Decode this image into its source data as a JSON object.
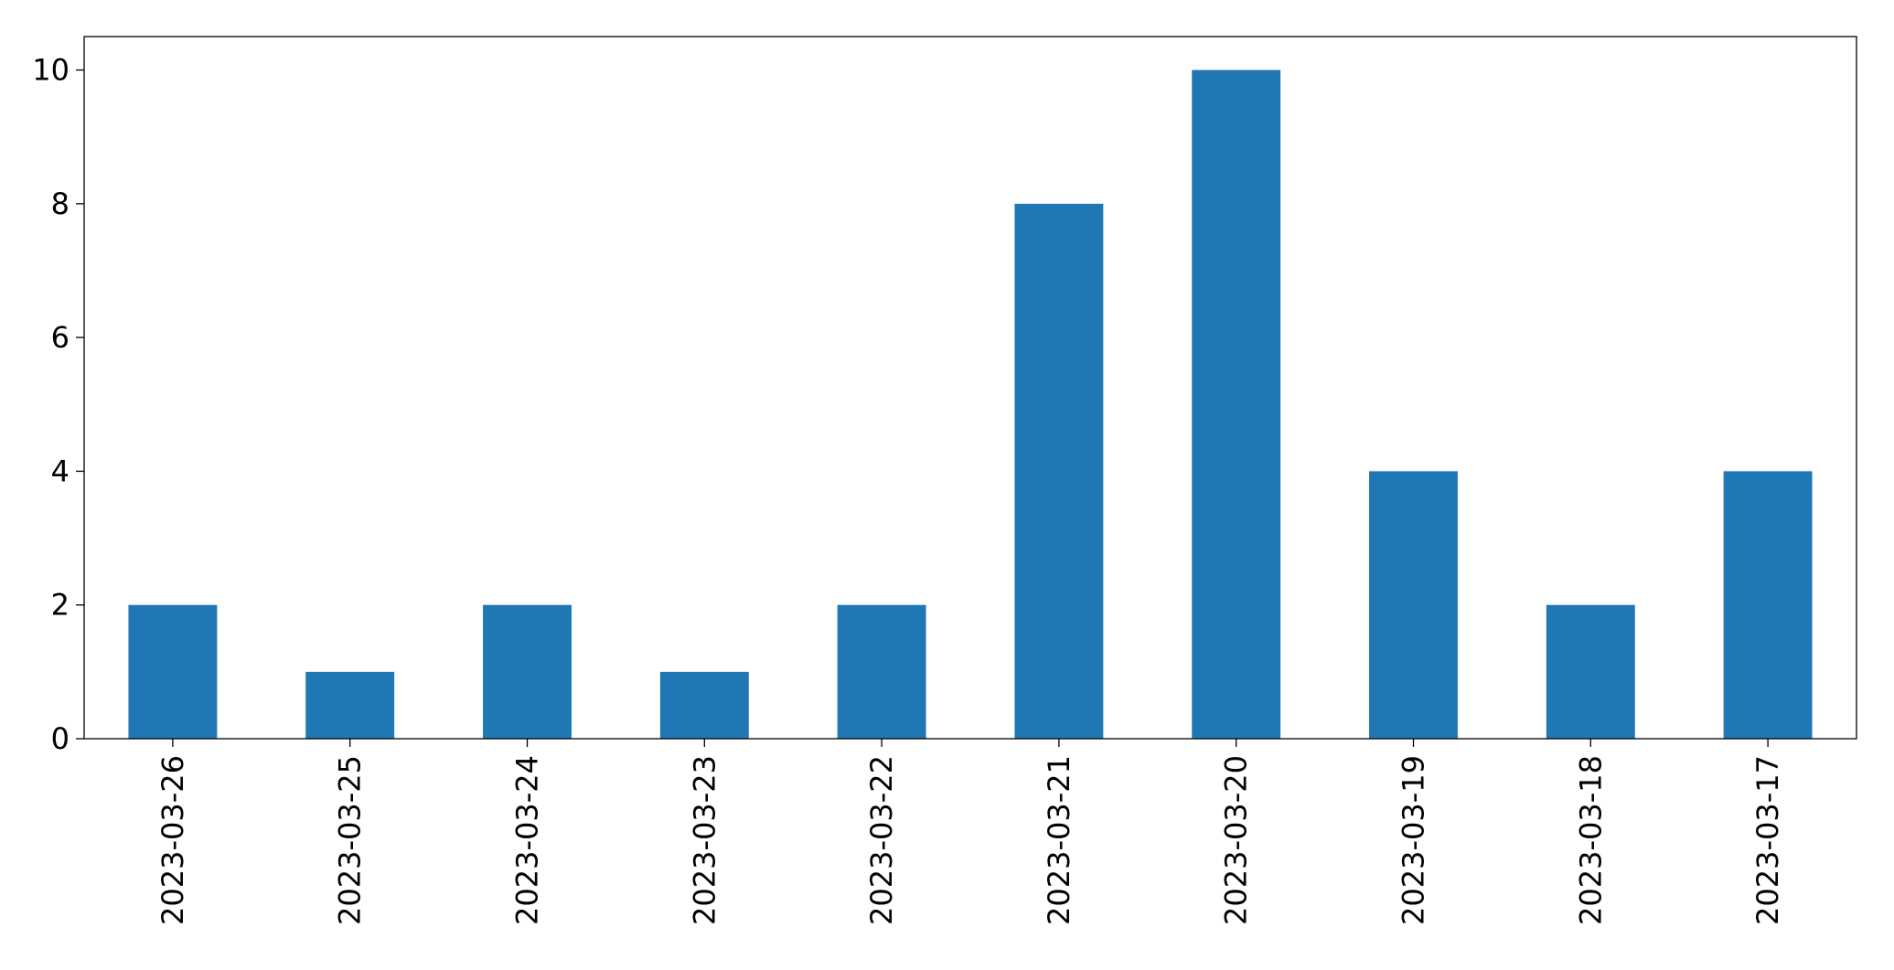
{
  "chart_data": {
    "type": "bar",
    "categories": [
      "2023-03-26",
      "2023-03-25",
      "2023-03-24",
      "2023-03-23",
      "2023-03-22",
      "2023-03-21",
      "2023-03-20",
      "2023-03-19",
      "2023-03-18",
      "2023-03-17"
    ],
    "values": [
      2,
      1,
      2,
      1,
      2,
      8,
      10,
      4,
      2,
      4
    ],
    "color": "#1f77b4",
    "ylim": [
      0,
      10.5
    ],
    "yticks": [
      0,
      2,
      4,
      6,
      8,
      10
    ],
    "grid": false
  }
}
